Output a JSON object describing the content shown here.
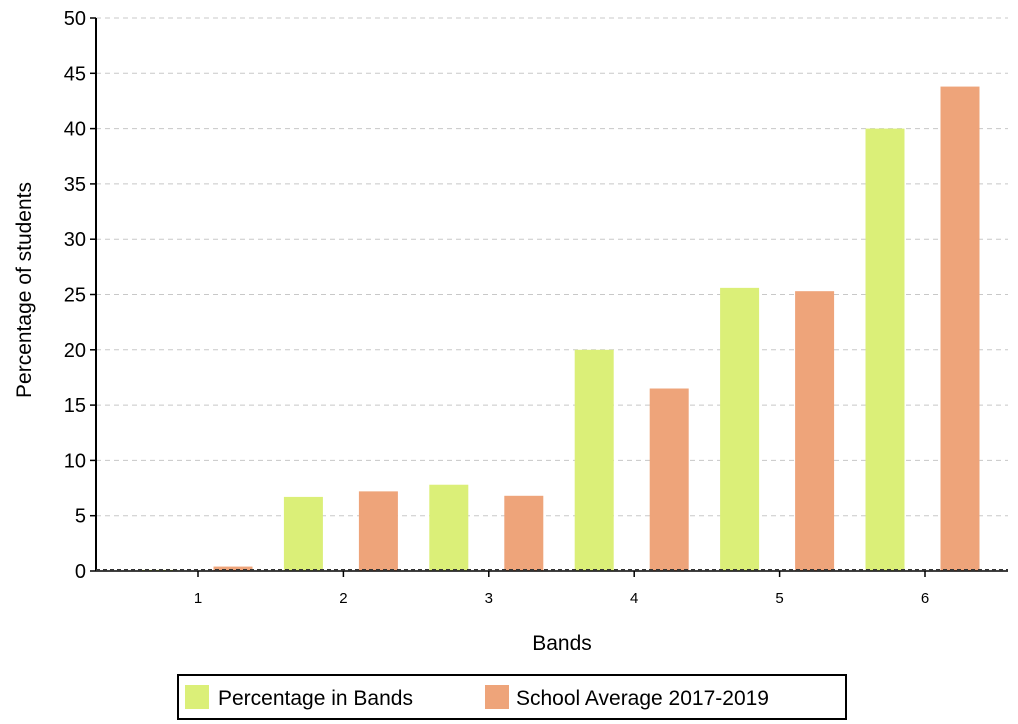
{
  "chart_data": {
    "type": "bar",
    "categories": [
      "1",
      "2",
      "3",
      "4",
      "5",
      "6"
    ],
    "series": [
      {
        "name": "Percentage in Bands",
        "values": [
          0.1,
          6.7,
          7.8,
          20.0,
          25.6,
          40.0
        ]
      },
      {
        "name": "School Average 2017-2019",
        "values": [
          0.4,
          7.2,
          6.8,
          16.5,
          25.3,
          43.8
        ]
      }
    ],
    "xlabel": "Bands",
    "ylabel": "Percentage of students",
    "ylim": [
      0,
      50
    ],
    "yticks": [
      "0",
      "5",
      "10",
      "15",
      "20",
      "25",
      "30",
      "35",
      "40",
      "45",
      "50"
    ],
    "grid": true,
    "legend_position": "bottom",
    "colors": {
      "series_0": "#dbef78",
      "series_1": "#eea47a",
      "grid": "#c8c8c8",
      "axis": "#000000"
    }
  }
}
